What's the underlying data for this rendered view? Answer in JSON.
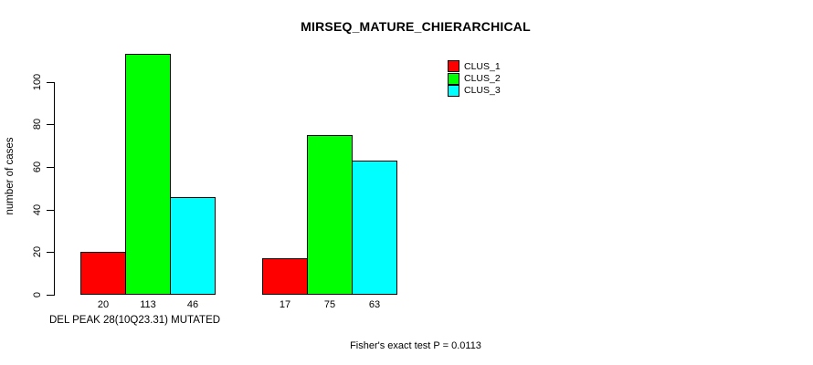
{
  "chart_data": {
    "type": "bar",
    "title": "MIRSEQ_MATURE_CHIERARCHICAL",
    "categories": [
      "",
      ""
    ],
    "series": [
      {
        "name": "CLUS_1",
        "color": "#ff0000",
        "values": [
          20,
          17
        ]
      },
      {
        "name": "CLUS_2",
        "color": "#00ff00",
        "values": [
          113,
          75
        ]
      },
      {
        "name": "CLUS_3",
        "color": "#00ffff",
        "values": [
          46,
          63
        ]
      }
    ],
    "bar_value_labels": [
      20,
      113,
      46,
      17,
      75,
      63
    ],
    "xlabel": "DEL PEAK 28(10Q23.31) MUTATED",
    "ylabel": "number of cases",
    "yticks": [
      0,
      20,
      40,
      60,
      80,
      100
    ],
    "ylim": [
      0,
      115
    ],
    "grid": false,
    "legend_position": "top-right",
    "annotation": "Fisher's exact test P = 0.0113"
  }
}
